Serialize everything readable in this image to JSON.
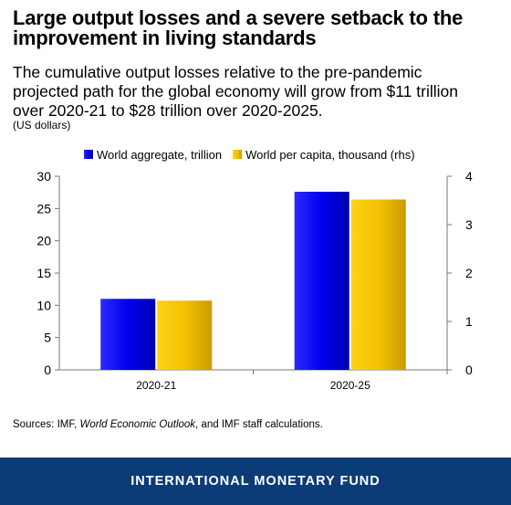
{
  "header": {
    "title_line1": "Large output losses and a severe setback to the",
    "title_line2": "improvement in living standards",
    "subtitle_line1": "The cumulative output losses relative to the pre-pandemic",
    "subtitle_line2": "projected path for the global economy will grow from $11 trillion",
    "subtitle_line3": "over 2020-21 to $28 trillion over 2020-2025.",
    "units": "(US dollars)"
  },
  "chart_data": {
    "type": "bar",
    "categories": [
      "2020-21",
      "2020-25"
    ],
    "series": [
      {
        "name": "World aggregate, trillion",
        "axis": "left",
        "color": "#0000e6",
        "values": [
          11.0,
          27.6
        ]
      },
      {
        "name": "World per capita, thousand (rhs)",
        "axis": "right",
        "color": "#f2c200",
        "values": [
          1.43,
          3.52
        ]
      }
    ],
    "y_left": {
      "min": 0,
      "max": 30,
      "ticks": [
        0,
        5,
        10,
        15,
        20,
        25,
        30
      ]
    },
    "y_right": {
      "min": 0,
      "max": 4,
      "ticks": [
        0,
        1,
        2,
        3,
        4
      ]
    },
    "grid": false,
    "legend_position": "top"
  },
  "source": {
    "prefix": "Sources: IMF, ",
    "italic": "World Economic Outlook",
    "suffix": ", and IMF staff calculations."
  },
  "footer": {
    "label": "INTERNATIONAL MONETARY FUND"
  }
}
